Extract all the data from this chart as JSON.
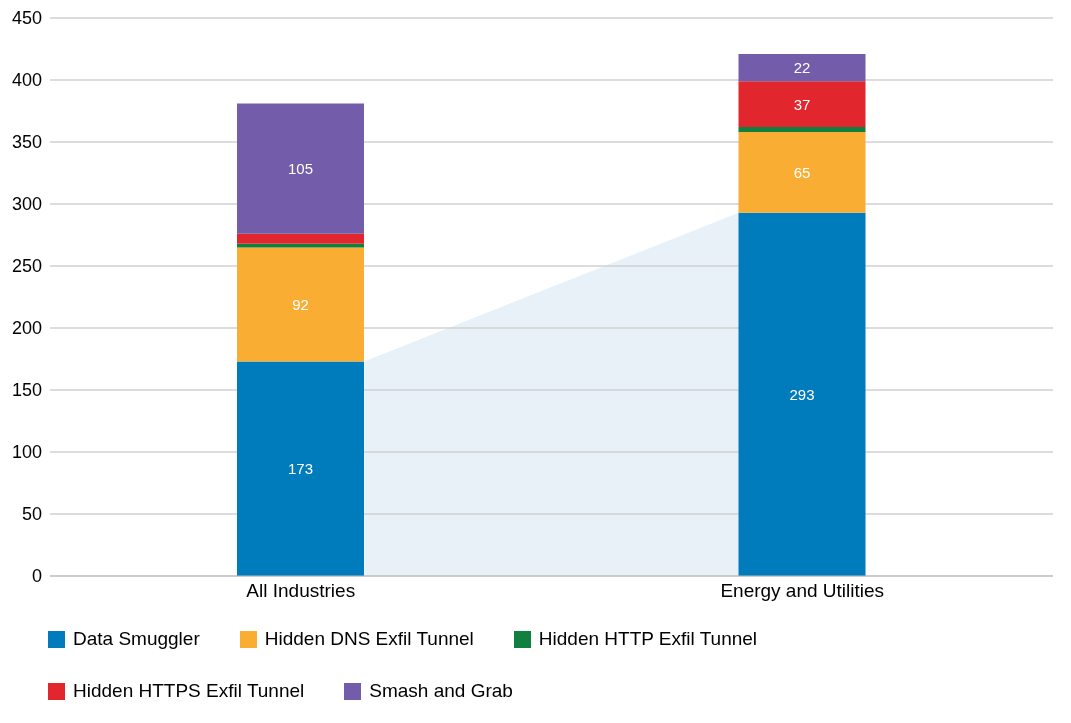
{
  "chart_data": {
    "type": "bar",
    "stacked": true,
    "categories": [
      "All Industries",
      "Energy and Utilities"
    ],
    "series": [
      {
        "name": "Data Smuggler",
        "color": "#007bbb",
        "values": [
          173,
          293
        ],
        "value_labels": [
          "173",
          "293"
        ]
      },
      {
        "name": "Hidden DNS Exfil Tunnel",
        "color": "#f9ae33",
        "values": [
          92,
          65
        ],
        "value_labels": [
          "92",
          "65"
        ]
      },
      {
        "name": "Hidden HTTP Exfil Tunnel",
        "color": "#0f803f",
        "values": [
          3,
          4
        ],
        "value_labels": [
          null,
          null
        ]
      },
      {
        "name": "Hidden HTTPS Exfil Tunnel",
        "color": "#e2262d",
        "values": [
          8,
          37
        ],
        "value_labels": [
          null,
          "37"
        ]
      },
      {
        "name": "Smash and Grab",
        "color": "#735ca9",
        "values": [
          105,
          22
        ],
        "value_labels": [
          "105",
          "22"
        ]
      }
    ],
    "ylim": [
      0,
      450
    ],
    "yticks": [
      0,
      50,
      100,
      150,
      200,
      250,
      300,
      350,
      400,
      450
    ],
    "grid": "y",
    "legend": "bottom"
  }
}
